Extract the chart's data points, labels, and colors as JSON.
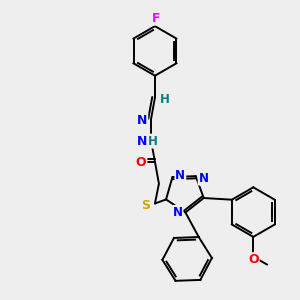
{
  "background_color": "#eeeeee",
  "bond_color": "#000000",
  "atom_colors": {
    "F": "#ff00ff",
    "H": "#008080",
    "N": "#0000ff",
    "O": "#ff0000",
    "S": "#ccaa00",
    "C": "#000000"
  },
  "figsize": [
    3.0,
    3.0
  ],
  "dpi": 100
}
